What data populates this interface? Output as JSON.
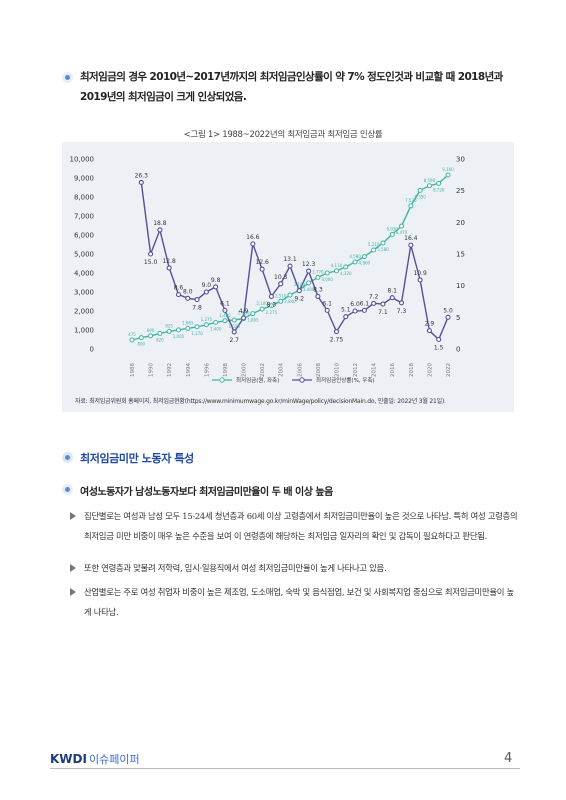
{
  "lead": "최저임금의 경우 2010년~2017년까지의 최저임금인상률이 약 7% 정도인것과 비교할 때 2018년과 2019년의 최저임금이 크게 인상되었음.",
  "figure_title": "<그림 1> 1988~2022년의 최저임금과 최저임금 인상률",
  "source": "자료: 최저임금위원회 홈페이지, 최저임금현황(https://www.minimumwage.go.kr/minWage/policy/decisionMain.do, 인출일: 2022년 3월 21일).",
  "section_title": "최저임금미만 노동자 특성",
  "subheading": "여성노동자가 남성노동자보다 최저임금미만율이 두 배 이상 높음",
  "paragraphs": [
    "집단별로는 여성과 남성 모두 15-24세 청년층과 60세 이상 고령층에서 최저임금미만율이 높은 것으로 나타남. 특히 여성 고령층의 최저임금 미만 비중이 매우 높은 수준을 보여 이 연령층에 해당하는 최저임금 일자리의 확인 및 감독이 필요하다고 판단됨.",
    "또한 연령층과 맞물려 저학력, 임시·일용직에서 여성 최저임금미만율이 높게 나타나고 있음.",
    "산업별로는 주로 여성 취업자 비중이 높은 제조업, 도소매업, 숙박 및 음식점업, 보건 및 사회복지업 중심으로 최저임금미만율이 높게 나타남."
  ],
  "footer": {
    "logo": "KWDI",
    "logo_sub": "이슈페이퍼",
    "page": "4"
  },
  "colors": {
    "wage": "#3fb5a5",
    "rate": "#574f98",
    "section": "#1f4aa0"
  },
  "chart_data": {
    "type": "line",
    "x": [
      "1988",
      "1989",
      "1990",
      "1991",
      "1992",
      "1993",
      "1994",
      "1995",
      "1996",
      "1997",
      "1998",
      "1999",
      "2000",
      "2001",
      "2002",
      "2003",
      "2004",
      "2005",
      "2006",
      "2007",
      "2008",
      "2009",
      "2010",
      "2011",
      "2012",
      "2013",
      "2014",
      "2015",
      "2016",
      "2017",
      "2018",
      "2019",
      "2020",
      "2021",
      "2022"
    ],
    "x_tick_labels": [
      "1988",
      "1990",
      "1992",
      "1994",
      "1996",
      "1998",
      "2000",
      "2002",
      "2004",
      "2006",
      "2008",
      "2010",
      "2012",
      "2014",
      "2016",
      "2018",
      "2020",
      "2022"
    ],
    "series": [
      {
        "name": "최저임금(원, 좌축)",
        "axis": "left",
        "values": [
          475,
          600,
          690,
          820,
          925,
          1005,
          1085,
          1170,
          1275,
          1400,
          1485,
          1525,
          1600,
          1865,
          2100,
          2275,
          2510,
          2840,
          3100,
          3480,
          3770,
          4000,
          4110,
          4320,
          4580,
          4860,
          5210,
          5580,
          6030,
          6470,
          7530,
          8350,
          8590,
          8720,
          9160
        ],
        "labels": [
          "475",
          "600",
          "690",
          "820",
          "925",
          "1,005",
          "1,085",
          "1,170",
          "1,275",
          "1,400",
          "1,485",
          "1,525",
          "1,600",
          "1,865",
          "2,100",
          "2,275",
          "2,510",
          "2,840",
          "3,100",
          "3,480",
          "3,770",
          "4,000",
          "4,110",
          "4,320",
          "4,580",
          "4,860",
          "5,210",
          "5,580",
          "6,030",
          "6,470",
          "7,530",
          "8,350",
          "8,590",
          "8,720",
          "9,160"
        ]
      },
      {
        "name": "최저임금인상률(%, 우축)",
        "axis": "right",
        "values": [
          null,
          26.3,
          15.0,
          18.8,
          12.8,
          8.6,
          8.0,
          7.8,
          9.0,
          9.8,
          6.1,
          2.7,
          4.9,
          16.6,
          12.6,
          8.3,
          10.3,
          13.1,
          9.2,
          12.3,
          8.3,
          6.1,
          2.75,
          5.1,
          6.0,
          6.1,
          7.2,
          7.1,
          8.1,
          7.3,
          16.4,
          10.9,
          2.9,
          1.5,
          5.0
        ],
        "labels": [
          "",
          "26.3",
          "15.0",
          "18.8",
          "12.8",
          "8.6",
          "8.0",
          "7.8",
          "9.0",
          "9.8",
          "6.1",
          "2.7",
          "4.9",
          "16.6",
          "12.6",
          "8.3",
          "10.3",
          "13.1",
          "9.2",
          "12.3",
          "8.3",
          "6.1",
          "2.75",
          "5.1",
          "6.0",
          "6.1",
          "7.2",
          "7.1",
          "8.1",
          "7.3",
          "16.4",
          "10.9",
          "2.9",
          "1.5",
          "5.0"
        ]
      }
    ],
    "left_axis": {
      "ylim": [
        0,
        10000
      ],
      "ticks": [
        "0",
        "1,000",
        "2,000",
        "3,000",
        "4,000",
        "5,000",
        "6,000",
        "7,000",
        "8,000",
        "9,000",
        "10,000"
      ]
    },
    "right_axis": {
      "ylim": [
        0,
        30
      ],
      "ticks": [
        "0",
        "5",
        "10",
        "15",
        "20",
        "25",
        "30"
      ]
    },
    "legend": [
      "최저임금(원, 좌축)",
      "최저임금인상률(%, 우축)"
    ],
    "legend_position": "bottom"
  }
}
